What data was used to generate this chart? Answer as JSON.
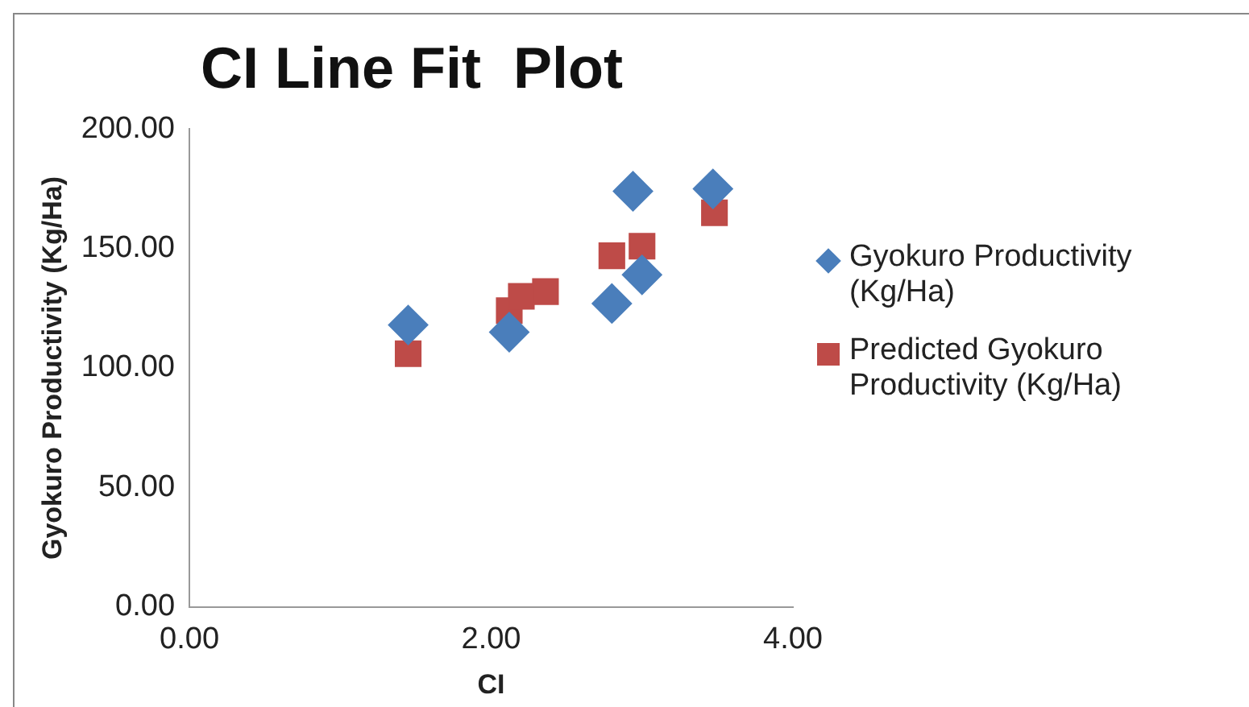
{
  "chart_data": {
    "type": "scatter",
    "title": "CI Line Fit  Plot",
    "xlabel": "CI",
    "ylabel": "Gyokuro Productivity (Kg/Ha)",
    "xlim": [
      0,
      4
    ],
    "xticks": [
      {
        "value": 0,
        "label": "0.00"
      },
      {
        "value": 2,
        "label": "2.00"
      },
      {
        "value": 4,
        "label": "4.00"
      }
    ],
    "ylim": [
      0,
      200
    ],
    "yticks": [
      {
        "value": 0,
        "label": "0.00"
      },
      {
        "value": 50,
        "label": "50.00"
      },
      {
        "value": 100,
        "label": "100.00"
      },
      {
        "value": 150,
        "label": "150.00"
      },
      {
        "value": 200,
        "label": "200.00"
      }
    ],
    "grid": false,
    "legend": "right",
    "series": [
      {
        "name": "Gyokuro Productivity (Kg/Ha)",
        "color": "#4a7ebb",
        "marker": "diamond",
        "x": [
          1.45,
          2.12,
          2.8,
          2.94,
          3.0,
          3.47
        ],
        "values": [
          118,
          115,
          127,
          174,
          139,
          175
        ]
      },
      {
        "name": "Predicted Gyokuro Productivity (Kg/Ha)",
        "color": "#be4b48",
        "marker": "square",
        "x": [
          1.45,
          2.12,
          2.2,
          2.36,
          2.8,
          2.92,
          3.0,
          3.48
        ],
        "values": [
          106,
          124,
          130,
          132,
          147,
          null,
          151,
          165
        ]
      }
    ]
  }
}
